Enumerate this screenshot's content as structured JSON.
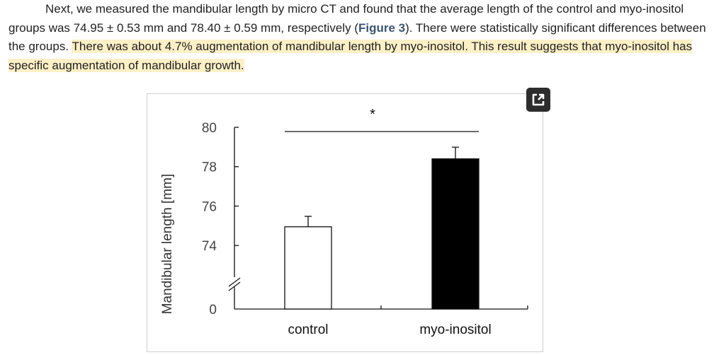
{
  "paragraph": {
    "part1": "Next, we measured the mandibular length by micro CT and found that the average length of the control and myo-inositol groups was 74.95 ± 0.53 mm and 78.40 ± 0.59 mm, respectively (",
    "figure_link": "Figure 3",
    "part2": "). There were statistically significant differences between the groups. ",
    "highlighted": "There was about 4.7% augmentation of mandibular length by myo-inositol. This result suggests that myo-inositol has specific augmentation of mandibular growth."
  },
  "figure": {
    "expand_icon": "external-link-icon",
    "chart_data": {
      "type": "bar",
      "categories": [
        "control",
        "myo-inositol"
      ],
      "values": [
        74.95,
        78.4
      ],
      "errors": [
        0.53,
        0.59
      ],
      "ylabel": "Mandibular length [mm]",
      "xlabel": "",
      "title": "",
      "yticks": [
        "0",
        "74",
        "76",
        "78",
        "80"
      ],
      "ylim": [
        73,
        80
      ],
      "axis_break": true,
      "significance_marker": "*",
      "bar_colors": [
        "#ffffff",
        "#000000"
      ],
      "grid": false
    }
  }
}
